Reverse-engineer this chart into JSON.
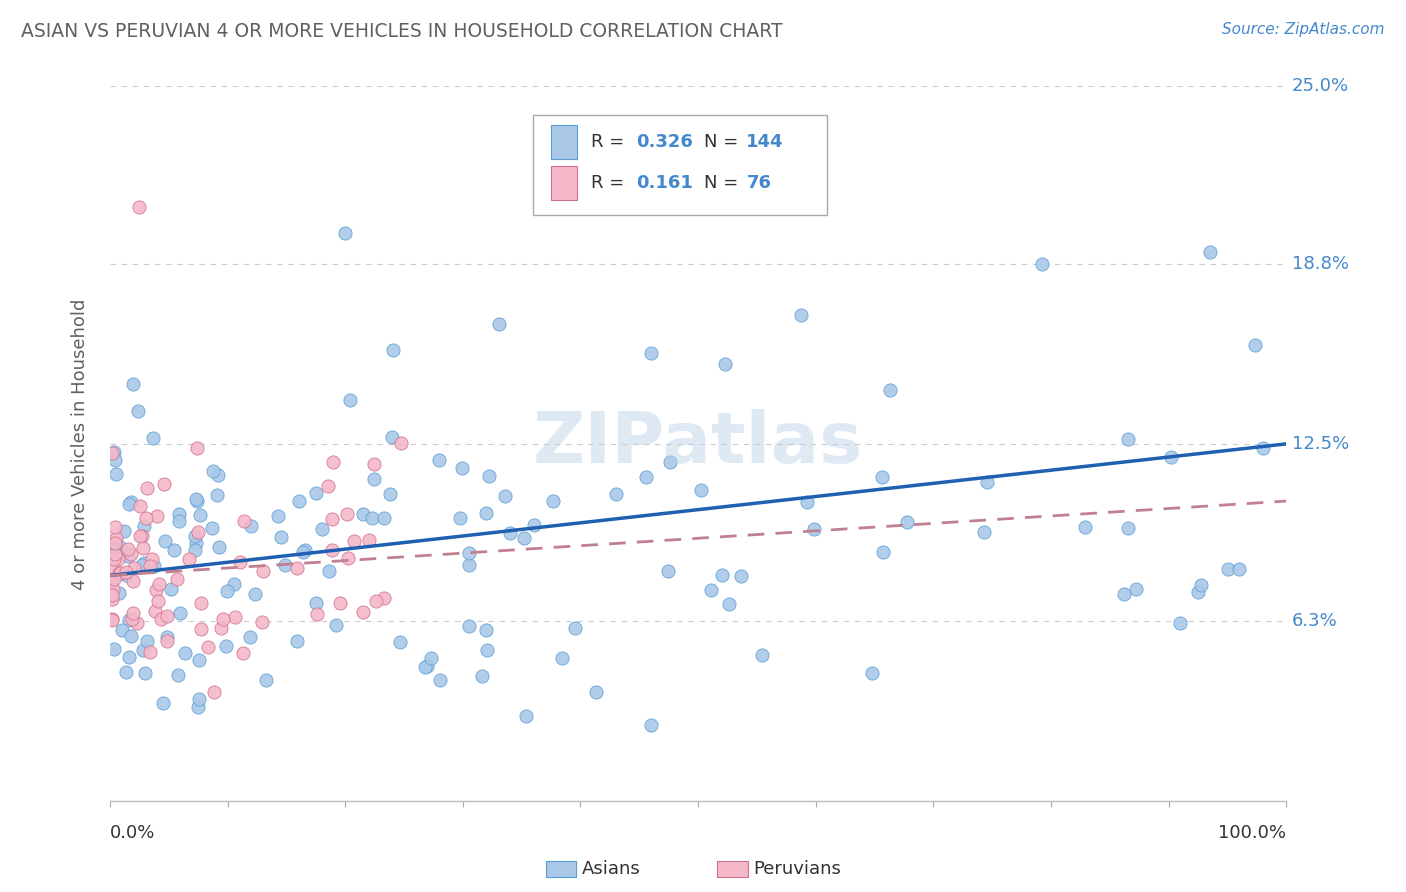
{
  "title": "ASIAN VS PERUVIAN 4 OR MORE VEHICLES IN HOUSEHOLD CORRELATION CHART",
  "source": "Source: ZipAtlas.com",
  "ylabel": "4 or more Vehicles in Household",
  "asian_R": 0.326,
  "asian_N": 144,
  "peruvian_R": 0.161,
  "peruvian_N": 76,
  "asian_color": "#aac8e8",
  "asian_edge_color": "#5a9fd4",
  "peruvian_color": "#f4b8c8",
  "peruvian_edge_color": "#d07090",
  "asian_line_color": "#2060b0",
  "peruvian_line_color": "#c08090",
  "background_color": "#ffffff",
  "grid_color": "#cccccc",
  "watermark": "ZIPatlas",
  "title_color": "#606060",
  "source_color": "#4488cc",
  "label_color": "#333333",
  "tick_color": "#4488cc",
  "ylabel_color": "#606060",
  "ytick_positions": [
    0.0,
    0.063,
    0.125,
    0.188,
    0.25
  ],
  "ytick_labels": [
    "",
    "6.3%",
    "12.5%",
    "18.8%",
    "25.0%"
  ]
}
